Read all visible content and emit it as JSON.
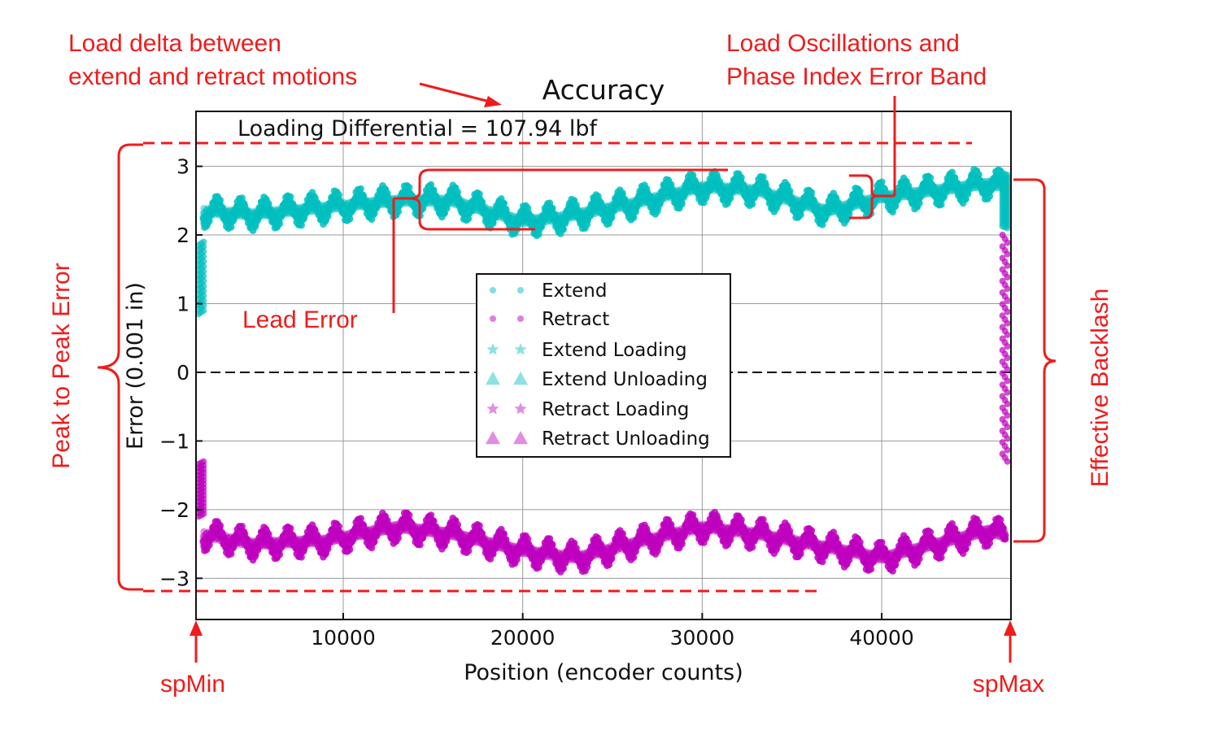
{
  "chart_data": {
    "type": "scatter",
    "title": "Accuracy",
    "xlabel": "Position (encoder counts)",
    "ylabel": "Error (0.001 in)",
    "xlim": [
      1800,
      47200
    ],
    "ylim": [
      -3.6,
      3.8
    ],
    "xticks": [
      10000,
      20000,
      30000,
      40000
    ],
    "xtick_labels": [
      "10000",
      "20000",
      "30000",
      "40000"
    ],
    "yticks": [
      3,
      2,
      1,
      0,
      -1,
      -2,
      -3
    ],
    "ytick_labels": [
      "3",
      "2",
      "1",
      "0",
      "−1",
      "−2",
      "−3"
    ],
    "grid": true,
    "zero_line": 0,
    "legend_position": "center",
    "inner_annotation": "Loading Differential = 107.94 lbf",
    "series": [
      {
        "name": "Extend",
        "marker": "dot",
        "color": "#00bfbf",
        "trend_x": [
          2000,
          5000,
          9000,
          13000,
          16000,
          20000,
          22000,
          26000,
          30000,
          33000,
          37000,
          40000,
          43000,
          46000,
          47000
        ],
        "trend_y": [
          2.35,
          2.3,
          2.4,
          2.5,
          2.5,
          2.2,
          2.25,
          2.45,
          2.7,
          2.65,
          2.35,
          2.55,
          2.65,
          2.75,
          2.7
        ],
        "band": 0.4,
        "start_jump_y": [
          0.85,
          1.9
        ],
        "end_jump_y": [
          2.1,
          2.9
        ]
      },
      {
        "name": "Retract",
        "marker": "dot",
        "color": "#bf00bf",
        "trend_x": [
          2000,
          5000,
          9000,
          13000,
          16000,
          20000,
          23000,
          26000,
          30000,
          33000,
          37000,
          40000,
          43000,
          46000,
          47000
        ],
        "trend_y": [
          -2.35,
          -2.5,
          -2.45,
          -2.25,
          -2.35,
          -2.6,
          -2.7,
          -2.5,
          -2.25,
          -2.35,
          -2.55,
          -2.7,
          -2.5,
          -2.3,
          -2.4
        ],
        "band": 0.4,
        "start_jump_y": [
          -2.1,
          -1.3
        ],
        "end_jump_y": [
          -1.3,
          2.0
        ]
      },
      {
        "name": "Extend Loading",
        "marker": "star",
        "color": "#00bfbf"
      },
      {
        "name": "Extend Unloading",
        "marker": "triangle",
        "color": "#00bfbf"
      },
      {
        "name": "Retract Loading",
        "marker": "star",
        "color": "#bf00bf"
      },
      {
        "name": "Retract Unloading",
        "marker": "triangle",
        "color": "#bf00bf"
      }
    ]
  },
  "annotations": {
    "load_delta": [
      "Load delta between",
      "extend and retract motions"
    ],
    "load_oscillations": [
      "Load Oscillations and",
      "Phase Index Error Band"
    ],
    "lead_error": "Lead Error",
    "peak_to_peak": "Peak to Peak Error",
    "effective_backlash": "Effective Backlash",
    "sp_min": "spMin",
    "sp_max": "spMax",
    "color": "#ee1c1c"
  }
}
